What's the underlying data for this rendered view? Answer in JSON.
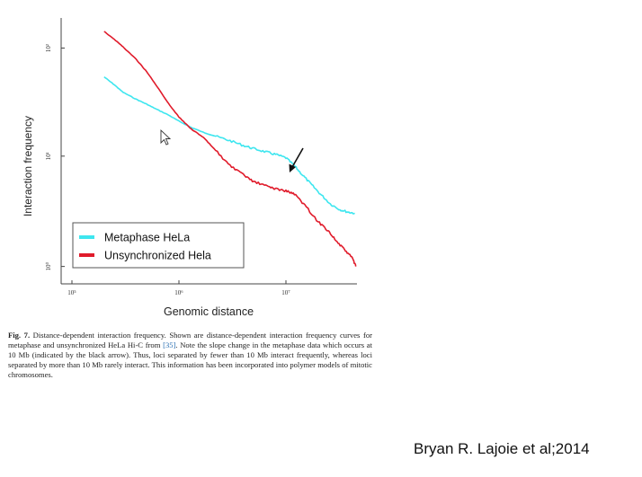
{
  "chart_data": {
    "type": "line",
    "title": "",
    "xlabel": "Genomic distance",
    "ylabel": "Interaction frequency",
    "xscale": "log",
    "yscale": "log",
    "xlim": [
      100000,
      50000000
    ],
    "ylim": [
      0.9,
      4.5
    ],
    "x_ticks": [
      {
        "value": 100000,
        "label": "10⁵"
      },
      {
        "value": 1000000,
        "label": "10⁶"
      },
      {
        "value": 10000000,
        "label": "10⁷"
      }
    ],
    "y_ticks": [
      {
        "value": 1,
        "label": "10⁰"
      },
      {
        "value": 1.95,
        "label": "10¹"
      },
      {
        "value": 3.75,
        "label": "10²"
      }
    ],
    "legend_position": "bottom-left",
    "series": [
      {
        "name": "Metaphase HeLa",
        "color": "#3ee6ef",
        "points": [
          [
            200000,
            3.15
          ],
          [
            250000,
            3.0
          ],
          [
            300000,
            2.87
          ],
          [
            400000,
            2.75
          ],
          [
            500000,
            2.67
          ],
          [
            600000,
            2.6
          ],
          [
            800000,
            2.5
          ],
          [
            1000000,
            2.41
          ],
          [
            1300000,
            2.32
          ],
          [
            1700000,
            2.25
          ],
          [
            2200000,
            2.2
          ],
          [
            3000000,
            2.14
          ],
          [
            4000000,
            2.08
          ],
          [
            5000000,
            2.04
          ],
          [
            6500000,
            2.0
          ],
          [
            8000000,
            1.97
          ],
          [
            10000000,
            1.93
          ],
          [
            12000000,
            1.84
          ],
          [
            14000000,
            1.75
          ],
          [
            17000000,
            1.65
          ],
          [
            21000000,
            1.55
          ],
          [
            26000000,
            1.46
          ],
          [
            32000000,
            1.41
          ],
          [
            38000000,
            1.39
          ],
          [
            44000000,
            1.38
          ]
        ]
      },
      {
        "name": "Unsynchronized Hela",
        "color": "#e01b2b",
        "points": [
          [
            200000,
            4.15
          ],
          [
            250000,
            3.95
          ],
          [
            300000,
            3.78
          ],
          [
            400000,
            3.5
          ],
          [
            500000,
            3.25
          ],
          [
            600000,
            3.02
          ],
          [
            800000,
            2.68
          ],
          [
            1000000,
            2.47
          ],
          [
            1300000,
            2.3
          ],
          [
            1700000,
            2.18
          ],
          [
            2200000,
            2.02
          ],
          [
            3000000,
            1.84
          ],
          [
            4000000,
            1.74
          ],
          [
            5000000,
            1.67
          ],
          [
            6500000,
            1.63
          ],
          [
            8000000,
            1.6
          ],
          [
            10000000,
            1.58
          ],
          [
            12000000,
            1.55
          ],
          [
            15000000,
            1.45
          ],
          [
            20000000,
            1.31
          ],
          [
            25000000,
            1.24
          ],
          [
            30000000,
            1.16
          ],
          [
            36000000,
            1.1
          ],
          [
            42000000,
            1.05
          ],
          [
            45000000,
            1.0
          ]
        ]
      }
    ]
  },
  "caption": {
    "fig_num": "Fig. 7.",
    "text_1": " Distance-dependent interaction frequency. Shown are distance-dependent interaction frequency curves for metaphase and unsynchronized HeLa Hi-C from ",
    "ref": "[35]",
    "text_2": ". Note the slope change in the metaphase data which occurs at 10 Mb (indicated by the black arrow). Thus, loci separated by fewer than 10 Mb interact frequently, whereas loci separated by more than 10 Mb rarely interact. This information has been incorporated into polymer models of mitotic chromosomes."
  },
  "credit": "Bryan R. Lajoie et al;2014",
  "icons": {
    "annotation": "arrow-icon",
    "pointer": "mouse-cursor-icon"
  }
}
